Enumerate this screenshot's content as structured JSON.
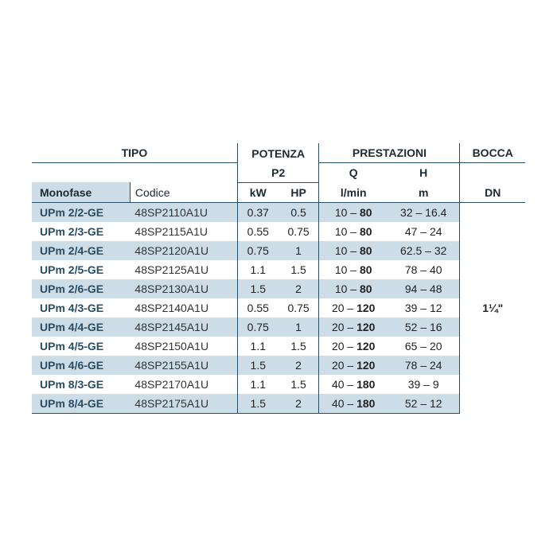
{
  "headers": {
    "tipo": "TIPO",
    "potenza": "POTENZA",
    "p2": "P2",
    "prestazioni": "PRESTAZIONI",
    "q": "Q",
    "h": "H",
    "bocca": "BOCCA",
    "monofase": "Monofase",
    "codice": "Codice",
    "kw": "kW",
    "hp": "HP",
    "lmin": "l/min",
    "m": "m",
    "dn": "DN"
  },
  "colors": {
    "band": "#cddde8",
    "border": "#2a4d66",
    "model_text": "#2a4d66",
    "text": "#222222",
    "background": "#ffffff"
  },
  "bocca_value": "1¼\"",
  "rows": [
    {
      "model": "UPm 2/2-GE",
      "code": "48SP2110A1U",
      "kw": "0.37",
      "hp": "0.5",
      "q_a": "10",
      "q_b": "80",
      "h": "32 – 16.4",
      "band": true
    },
    {
      "model": "UPm 2/3-GE",
      "code": "48SP2115A1U",
      "kw": "0.55",
      "hp": "0.75",
      "q_a": "10",
      "q_b": "80",
      "h": "47 – 24",
      "band": false
    },
    {
      "model": "UPm 2/4-GE",
      "code": "48SP2120A1U",
      "kw": "0.75",
      "hp": "1",
      "q_a": "10",
      "q_b": "80",
      "h": "62.5 – 32",
      "band": true
    },
    {
      "model": "UPm 2/5-GE",
      "code": "48SP2125A1U",
      "kw": "1.1",
      "hp": "1.5",
      "q_a": "10",
      "q_b": "80",
      "h": "78 – 40",
      "band": false
    },
    {
      "model": "UPm 2/6-GE",
      "code": "48SP2130A1U",
      "kw": "1.5",
      "hp": "2",
      "q_a": "10",
      "q_b": "80",
      "h": "94 – 48",
      "band": true
    },
    {
      "model": "UPm 4/3-GE",
      "code": "48SP2140A1U",
      "kw": "0.55",
      "hp": "0.75",
      "q_a": "20",
      "q_b": "120",
      "h": "39 – 12",
      "band": false
    },
    {
      "model": "UPm 4/4-GE",
      "code": "48SP2145A1U",
      "kw": "0.75",
      "hp": "1",
      "q_a": "20",
      "q_b": "120",
      "h": "52 – 16",
      "band": true
    },
    {
      "model": "UPm 4/5-GE",
      "code": "48SP2150A1U",
      "kw": "1.1",
      "hp": "1.5",
      "q_a": "20",
      "q_b": "120",
      "h": "65 – 20",
      "band": false
    },
    {
      "model": "UPm 4/6-GE",
      "code": "48SP2155A1U",
      "kw": "1.5",
      "hp": "2",
      "q_a": "20",
      "q_b": "120",
      "h": "78 – 24",
      "band": true
    },
    {
      "model": "UPm 8/3-GE",
      "code": "48SP2170A1U",
      "kw": "1.1",
      "hp": "1.5",
      "q_a": "40",
      "q_b": "180",
      "h": "39 – 9",
      "band": false
    },
    {
      "model": "UPm 8/4-GE",
      "code": "48SP2175A1U",
      "kw": "1.5",
      "hp": "2",
      "q_a": "40",
      "q_b": "180",
      "h": "52 – 12",
      "band": true
    }
  ]
}
